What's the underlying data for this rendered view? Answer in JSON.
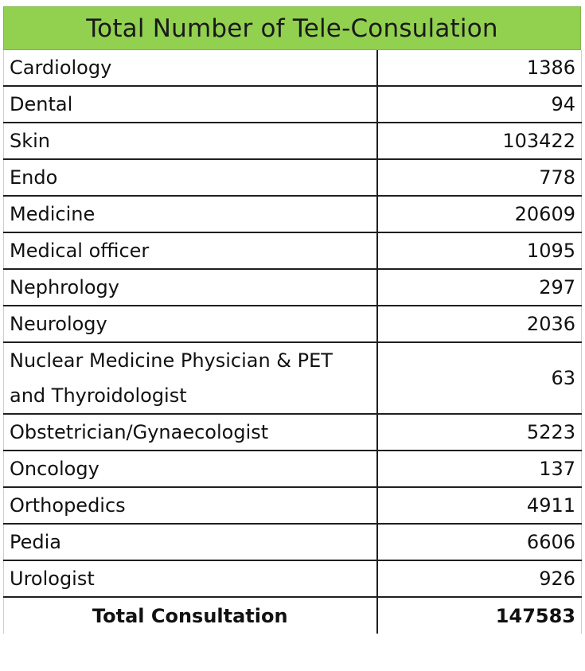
{
  "title": "Total Number of Tele-Consulation",
  "rows": [
    {
      "name": "Cardiology",
      "value": "1386"
    },
    {
      "name": "Dental",
      "value": "94"
    },
    {
      "name": "Skin",
      "value": "103422"
    },
    {
      "name": "Endo",
      "value": "778"
    },
    {
      "name": "Medicine",
      "value": "20609"
    },
    {
      "name": "Medical officer",
      "value": "1095"
    },
    {
      "name": "Nephrology",
      "value": "297"
    },
    {
      "name": "Neurology",
      "value": "2036"
    },
    {
      "name": "Nuclear Medicine Physician & PET and Thyroidologist",
      "value": "63"
    },
    {
      "name": "Obstetrician/Gynaecologist",
      "value": "5223"
    },
    {
      "name": "Oncology",
      "value": "137"
    },
    {
      "name": "Orthopedics",
      "value": "4911"
    },
    {
      "name": "Pedia",
      "value": "6606"
    },
    {
      "name": "Urologist",
      "value": "926"
    }
  ],
  "total": {
    "label": "Total Consultation",
    "value": "147583"
  },
  "colors": {
    "header_bg": "#92d050"
  }
}
